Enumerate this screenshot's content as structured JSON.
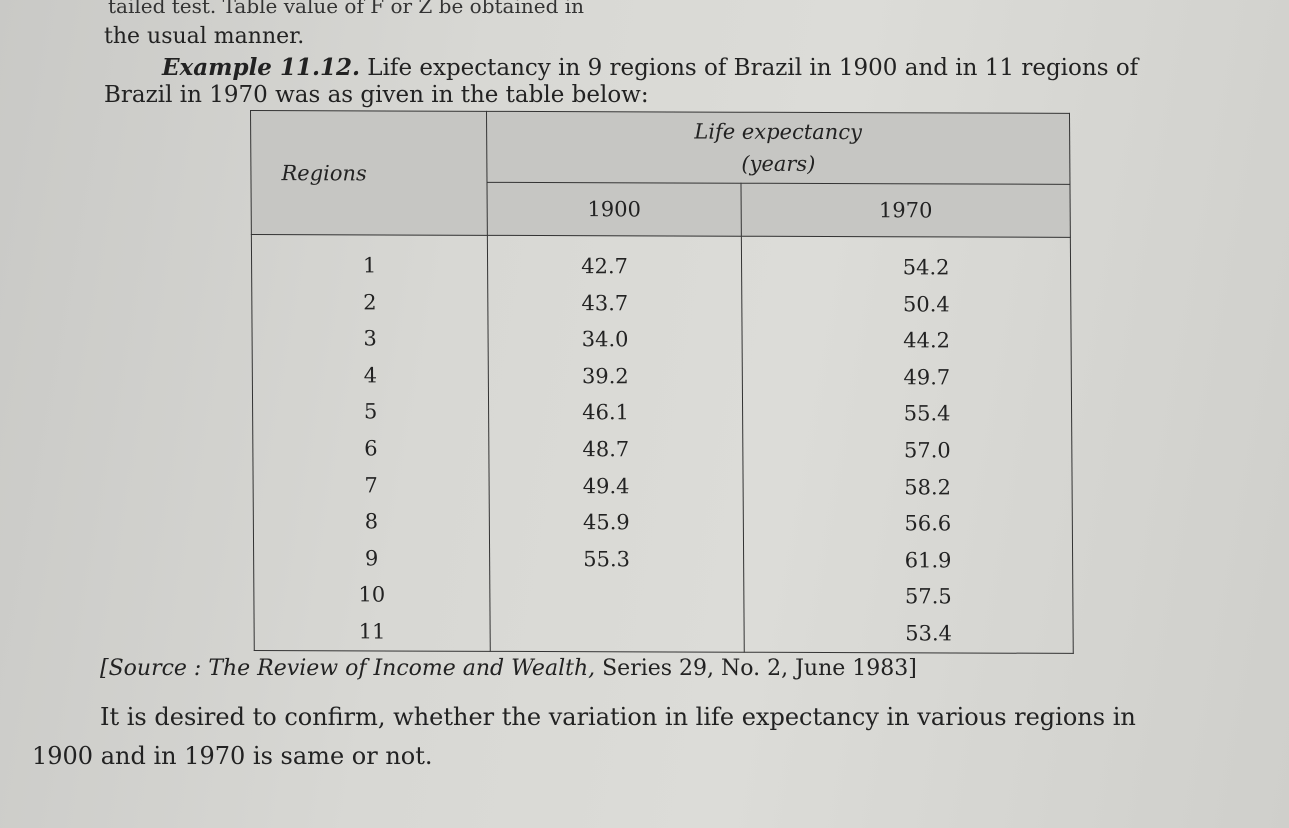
{
  "text": {
    "top_fragment": "tailed test. Table value of F or Z be obtained in",
    "usual": "the usual manner.",
    "example_label": "Example 11.12.",
    "example_text": " Life expectancy in 9 regions of Brazil in 1900 and in 11 regions of",
    "brazil_line": "Brazil in 1970 was as given in the table below:",
    "source": "[Source : The Review of Income and Wealth,",
    "source_rest": " Series 29, No. 2, June 1983]",
    "desired": "It is desired to confirm, whether the variation in life expectancy in various regions in",
    "desired2": "1900 and in 1970 is same or not."
  },
  "table": {
    "header_regions": "Regions",
    "header_life": "Life expectancy",
    "header_years": "(years)",
    "header_1900": "1900",
    "header_1970": "1970",
    "regions": [
      "1",
      "2",
      "3",
      "4",
      "5",
      "6",
      "7",
      "8",
      "9",
      "10",
      "11"
    ],
    "y1900": [
      "42.7",
      "43.7",
      "34.0",
      "39.2",
      "46.1",
      "48.7",
      "49.4",
      "45.9",
      "55.3"
    ],
    "y1970": [
      "54.2",
      "50.4",
      "44.2",
      "49.7",
      "55.4",
      "57.0",
      "58.2",
      "56.6",
      "61.9",
      "57.5",
      "53.4"
    ]
  }
}
